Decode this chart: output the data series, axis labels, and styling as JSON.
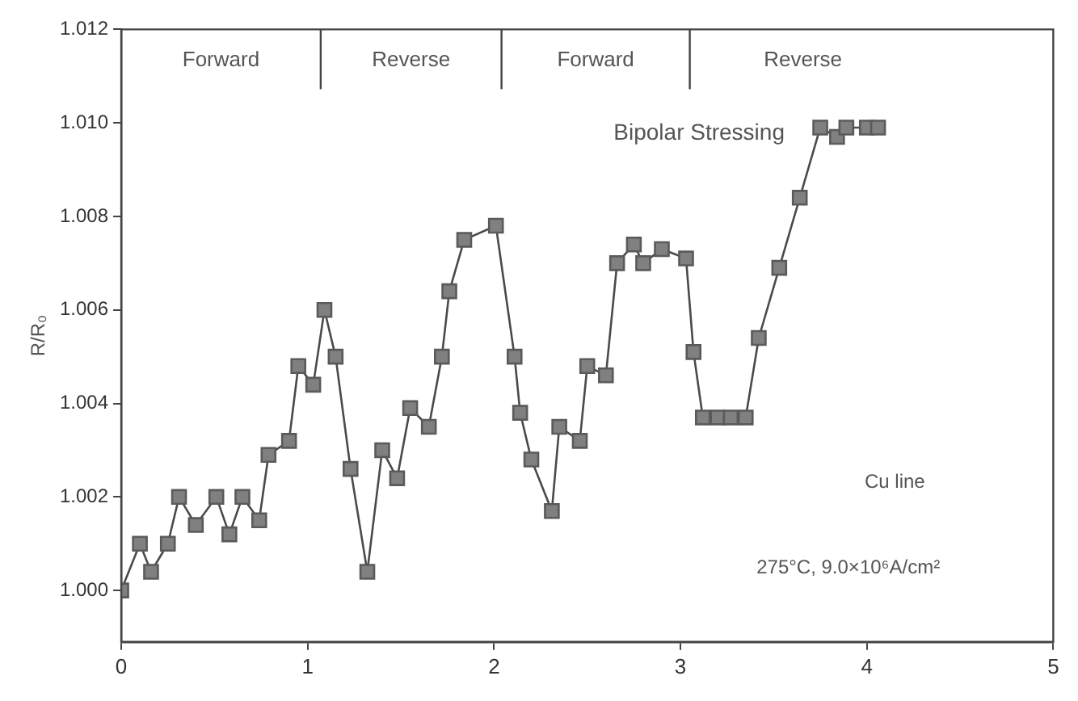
{
  "chart_data": {
    "type": "line",
    "ylabel": "R/R₀",
    "marker": "square",
    "grid": false,
    "legend": false,
    "xlim": [
      0,
      5
    ],
    "xticks": [
      0,
      1,
      2,
      3,
      4,
      5
    ],
    "ylim": [
      0.9989,
      1.012
    ],
    "yticks": [
      {
        "value": 1,
        "label": "1.000"
      },
      1.002,
      1.004,
      1.006,
      1.008,
      {
        "value": 1.01,
        "label": "1.010"
      },
      1.012
    ],
    "ref_lines": [
      {
        "axis": "x",
        "value": 1.07
      },
      {
        "axis": "x",
        "value": 2.04
      },
      {
        "axis": "x",
        "value": 3.05
      }
    ],
    "annotations": [
      "Forward",
      "Reverse",
      "Forward",
      "Reverse",
      "Bipolar Stressing",
      "Cu line",
      "275°C, 9.0×10⁶A/cm²"
    ],
    "series": [
      {
        "color": "#808080",
        "x": [
          0,
          0.1,
          0.16,
          0.25,
          0.31,
          0.4,
          0.51,
          0.58,
          0.65,
          0.74,
          0.79,
          0.9,
          0.95,
          1.03,
          1.09,
          1.15,
          1.23,
          1.32,
          1.4,
          1.48,
          1.55,
          1.65,
          1.72,
          1.76,
          1.84,
          2.01,
          2.11,
          2.14,
          2.2,
          2.31,
          2.35,
          2.46,
          2.5,
          2.6,
          2.66,
          2.75,
          2.8,
          2.9,
          3.03,
          3.07,
          3.12,
          3.2,
          3.27,
          3.35,
          3.42,
          3.53,
          3.64,
          3.75,
          3.84,
          3.89,
          4,
          4.06
        ],
        "values": [
          1.0,
          1.001,
          1.0004,
          1.001,
          1.002,
          1.0014,
          1.002,
          1.0012,
          1.002,
          1.0015,
          1.0029,
          1.0032,
          1.0048,
          1.0044,
          1.006,
          1.005,
          1.0026,
          1.0004,
          1.003,
          1.0024,
          1.0039,
          1.0035,
          1.005,
          1.0064,
          1.0075,
          1.0078,
          1.005,
          1.0038,
          1.0028,
          1.0017,
          1.0035,
          1.0032,
          1.0048,
          1.0046,
          1.007,
          1.0074,
          1.007,
          1.0073,
          1.0071,
          1.0051,
          1.0037,
          1.0037,
          1.0037,
          1.0037,
          1.0054,
          1.0069,
          1.0084,
          1.0099,
          1.0097,
          1.0099,
          1.0099,
          1.0099
        ]
      }
    ]
  }
}
